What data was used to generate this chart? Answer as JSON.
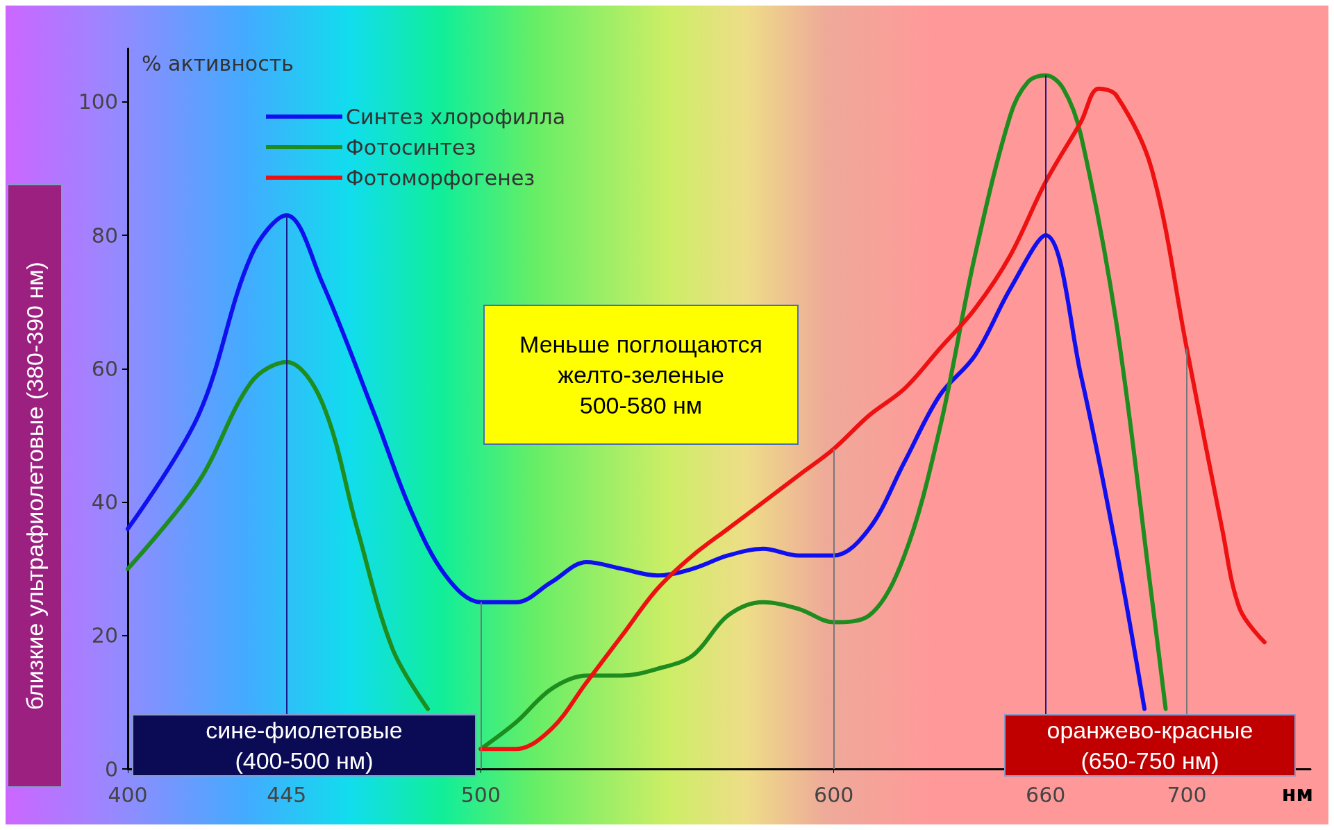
{
  "chart_data": {
    "type": "line",
    "ylabel": "% активность",
    "xlabel": "нм",
    "xlim": [
      400,
      735
    ],
    "xticks": [
      400,
      445,
      500,
      600,
      660,
      700
    ],
    "ylim": [
      0,
      108
    ],
    "yticks": [
      0,
      20,
      40,
      60,
      80,
      100
    ],
    "grid": false,
    "legend": "top left",
    "marker": "none",
    "line_style": "solid",
    "series": [
      {
        "name": "Синтез хлорофилла",
        "color": "#1010ee",
        "x": [
          400,
          420,
          435,
          445,
          455,
          470,
          480,
          490,
          500,
          510,
          520,
          530,
          540,
          550,
          560,
          570,
          580,
          590,
          600,
          610,
          620,
          630,
          640,
          650,
          660,
          670,
          680,
          688
        ],
        "values": [
          36,
          53,
          77,
          83,
          73,
          53,
          39,
          29,
          25,
          25,
          28,
          31,
          30,
          29,
          30,
          32,
          33,
          32,
          32,
          36,
          46,
          56,
          62,
          72,
          80,
          59,
          33,
          9
        ]
      },
      {
        "name": "Фотосинтез",
        "color": "#1e8c1e",
        "x": [
          400,
          420,
          435,
          445,
          455,
          465,
          475,
          485,
          490,
          500,
          510,
          520,
          530,
          540,
          550,
          560,
          570,
          580,
          590,
          600,
          610,
          620,
          630,
          640,
          650,
          655,
          660,
          665,
          670,
          680,
          690,
          694
        ],
        "values": [
          30,
          43,
          58,
          61,
          55,
          36,
          18,
          9,
          null,
          3,
          7,
          12,
          14,
          14,
          15,
          17,
          23,
          25,
          24,
          22,
          23,
          32,
          51,
          77,
          98,
          103,
          104,
          102,
          95,
          67,
          26,
          9
        ]
      },
      {
        "name": "Фотоморфогенез",
        "color": "#ee1111",
        "x": [
          500,
          510,
          520,
          530,
          540,
          550,
          560,
          570,
          580,
          590,
          600,
          610,
          620,
          630,
          640,
          650,
          660,
          670,
          675,
          680,
          690,
          700,
          710,
          715,
          722
        ],
        "values": [
          3,
          3,
          6,
          13,
          20,
          27,
          32,
          36,
          40,
          44,
          48,
          53,
          57,
          63,
          69,
          77,
          88,
          97,
          102,
          101,
          90,
          63,
          36,
          24,
          19
        ]
      }
    ],
    "ref_lines": [
      {
        "axis": "x",
        "value": 445,
        "color": "#1a1a8c"
      },
      {
        "axis": "x",
        "value": 500,
        "color": "#777777"
      },
      {
        "axis": "x",
        "value": 600,
        "color": "#777777"
      },
      {
        "axis": "x",
        "value": 660,
        "color": "#1a1a8c"
      },
      {
        "axis": "x",
        "value": 700,
        "color": "#777777"
      }
    ],
    "annotations": [
      "Меньше поглощаются\nжелто-зеленые\n500-580 нм",
      "сине-фиолетовые\n(400-500 нм)",
      "оранжево-красные\n(650-750 нм)",
      "близкие ультрафиолетовые (380-390 нм)"
    ]
  }
}
